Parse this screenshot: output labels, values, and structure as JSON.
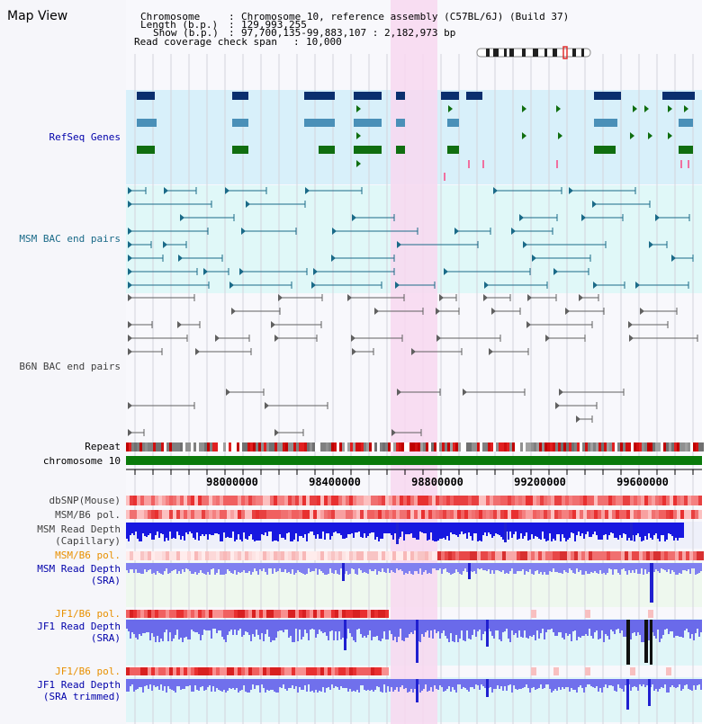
{
  "title": "Map View",
  "info": {
    "chromosome_key": "Chromosome",
    "chromosome_val": "Chromosome 10, reference assembly (C57BL/6J) (Build 37)",
    "length_key": "Length (b.p.)",
    "length_val": "129,993,255",
    "show_key": "Show (b.p.)",
    "show_val": "97,700,135-99,883,107 : 2,182,973 bp",
    "coverage_key": "Read coverage check span",
    "coverage_val": "10,000"
  },
  "tracks": {
    "refseq": "RefSeq Genes",
    "msm_bac": "MSM BAC end pairs",
    "b6n_bac": "B6N BAC end pairs",
    "repeat": "Repeat",
    "chromosome": "chromosome 10",
    "dbsnp": "dbSNP(Mouse)",
    "msm_b6_pol_1": "MSM/B6 pol.",
    "msm_depth_cap_1": "MSM Read Depth",
    "msm_depth_cap_2": "(Capillary)",
    "msm_b6_pol_2": "MSM/B6 pol.",
    "msm_depth_sra_1": "MSM Read Depth",
    "msm_depth_sra_2": "(SRA)",
    "jf1_b6_pol_1": "JF1/B6 pol.",
    "jf1_depth_sra_1": "JF1 Read Depth",
    "jf1_depth_sra_2": "(SRA)",
    "jf1_b6_pol_2": "JF1/B6 pol.",
    "jf1_depth_trim_1": "JF1 Read Depth",
    "jf1_depth_trim_2": "(SRA trimmed)"
  },
  "axis_ticks": [
    "98000000",
    "98400000",
    "98800000",
    "99200000",
    "99600000"
  ],
  "colors": {
    "navy": "#0a2f6e",
    "teal_blue": "#4a90b8",
    "green": "#106e10",
    "bac_teal": "#1a6a88",
    "b6n_gray": "#606060",
    "highlight": "#f8d8f0",
    "refseq_bg": "#d8f0fa",
    "msm_bg": "#e0f8f8",
    "label_blue": "#0000aa",
    "label_teal": "#1a6a88",
    "label_orange": "#e89000",
    "label_gray": "#404040"
  }
}
